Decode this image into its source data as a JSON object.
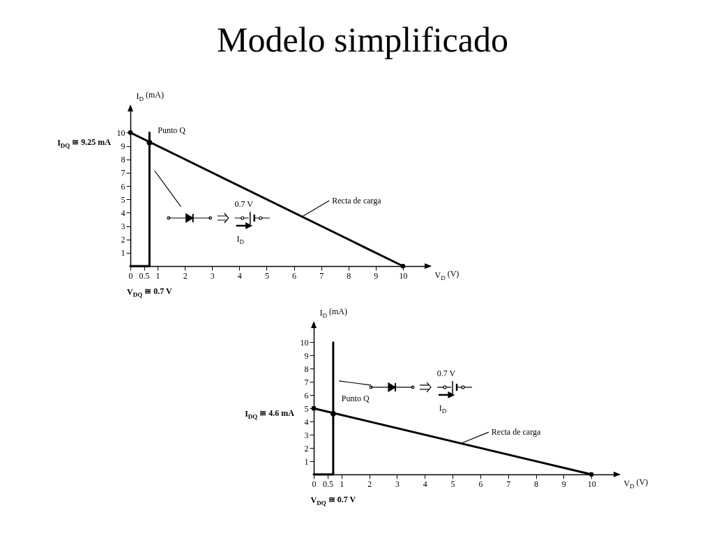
{
  "chart_data": [
    {
      "type": "line",
      "title": "Modelo simplificado",
      "xlabel": "V$_{D}$ (V)",
      "ylabel": "I$_{D}$ (mA)",
      "xlim": [
        0,
        11
      ],
      "ylim": [
        0,
        12
      ],
      "xticks": [
        0,
        0.5,
        1,
        2,
        3,
        4,
        5,
        6,
        7,
        8,
        9,
        10
      ],
      "yticks": [
        1,
        2,
        3,
        4,
        5,
        6,
        7,
        8,
        9,
        10
      ],
      "series": [
        {
          "name": "Recta de carga",
          "color": "#000000",
          "x": [
            0,
            10
          ],
          "values": [
            10,
            0
          ],
          "marker": "circle"
        },
        {
          "color": "#000000",
          "x": [
            0,
            0.7,
            0.7
          ],
          "values": [
            0,
            0,
            10
          ],
          "marker": "none"
        },
        {
          "type": "scatter",
          "name": "Punto Q",
          "color": "#000000",
          "x": [
            0.7
          ],
          "values": [
            9.25
          ],
          "marker": "circle"
        }
      ],
      "annotations": [
        "I$_{DQ}$ ≅ 9.25 mA",
        "V$_{DQ}$ ≅ 0.7 V",
        "0.7 V",
        "I$_{D}$"
      ]
    },
    {
      "type": "line",
      "xlabel": "V$_{D}$ (V)",
      "ylabel": "I$_{D}$ (mA)",
      "xlim": [
        0,
        11
      ],
      "ylim": [
        0,
        11.5
      ],
      "xticks": [
        0,
        0.5,
        1,
        2,
        3,
        4,
        5,
        6,
        7,
        8,
        9,
        10
      ],
      "yticks": [
        1,
        2,
        3,
        4,
        5,
        6,
        7,
        8,
        9,
        10
      ],
      "series": [
        {
          "name": "Recta de carga",
          "color": "#000000",
          "x": [
            0,
            10
          ],
          "values": [
            5,
            0
          ],
          "marker": "circle"
        },
        {
          "color": "#000000",
          "x": [
            0,
            0.7,
            0.7
          ],
          "values": [
            0,
            0,
            10
          ],
          "marker": "none"
        },
        {
          "type": "scatter",
          "name": "Punto Q",
          "color": "#000000",
          "x": [
            0.7
          ],
          "values": [
            4.6
          ],
          "marker": "circle"
        }
      ],
      "annotations": [
        "I$_{DQ}$ ≅ 4.6 mA",
        "V$_{DQ}$ ≅ 0.7 V",
        "0.7 V",
        "I$_{D}$"
      ]
    }
  ]
}
